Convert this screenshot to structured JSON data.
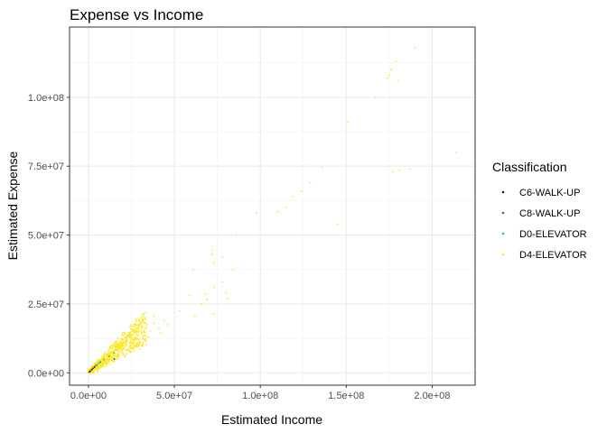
{
  "chart_data": {
    "type": "scatter",
    "title": "Expense vs Income",
    "xlabel": "Estimated Income",
    "ylabel": "Estimated Expense",
    "xlim": [
      -11000000.0,
      225000000.0
    ],
    "ylim": [
      -4500000.0,
      125500000.0
    ],
    "x_ticks": [
      0,
      50000000.0,
      100000000.0,
      150000000.0,
      200000000.0
    ],
    "x_tick_labels": [
      "0.0e+00",
      "5.0e+07",
      "1.0e+08",
      "1.5e+08",
      "2.0e+08"
    ],
    "y_ticks": [
      0,
      25000000.0,
      50000000.0,
      75000000.0,
      100000000.0
    ],
    "y_tick_labels": [
      "0.0e+00",
      "2.5e+07",
      "5.0e+07",
      "7.5e+07",
      "1.0e+08"
    ],
    "grid": true,
    "legend": {
      "title": "Classification",
      "position": "right"
    },
    "series": [
      {
        "name": "D4-ELEVATOR",
        "color": "#FDE725",
        "points": [
          [
            214000000,
            80000000
          ],
          [
            190000000,
            118000000
          ],
          [
            179000000,
            113000000
          ],
          [
            176000000,
            110000000
          ],
          [
            175000000,
            108000000
          ],
          [
            174000000,
            107000000
          ],
          [
            180000000,
            106000000
          ],
          [
            167000000,
            100000000
          ],
          [
            151000000,
            91000000
          ],
          [
            187000000,
            74000000
          ],
          [
            181000000,
            73500000
          ],
          [
            177000000,
            73000000
          ],
          [
            136000000,
            74500000
          ],
          [
            129000000,
            69000000
          ],
          [
            124000000,
            66000000
          ],
          [
            119000000,
            64000000
          ],
          [
            115000000,
            60000000
          ],
          [
            110000000,
            58500000
          ],
          [
            98000000,
            58000000
          ],
          [
            145000000,
            54000000
          ],
          [
            86000000,
            50000000
          ],
          [
            72000000,
            44500000
          ],
          [
            72000000,
            43000000
          ],
          [
            78000000,
            42000000
          ],
          [
            73000000,
            40000000
          ],
          [
            61000000,
            37500000
          ],
          [
            84000000,
            37500000
          ],
          [
            78000000,
            33000000
          ],
          [
            73000000,
            31000000
          ],
          [
            59000000,
            28000000
          ],
          [
            68000000,
            28500000
          ],
          [
            69000000,
            26500000
          ],
          [
            66000000,
            25000000
          ],
          [
            80000000,
            29000000
          ],
          [
            81000000,
            27000000
          ],
          [
            53000000,
            22500000
          ],
          [
            62000000,
            20500000
          ],
          [
            73000000,
            21500000
          ],
          [
            44000000,
            19000000
          ],
          [
            46000000,
            17500000
          ],
          [
            41000000,
            16000000
          ],
          [
            38000000,
            20500000
          ],
          [
            38000000,
            18000000
          ],
          [
            36000000,
            15000000
          ],
          [
            34000000,
            17500000
          ],
          [
            31000000,
            14000000
          ],
          [
            29000000,
            16000000
          ],
          [
            28000000,
            12500000
          ],
          [
            25000000,
            13500000
          ],
          [
            24000000,
            11000000
          ],
          [
            22000000,
            12000000
          ],
          [
            20000000,
            10000000
          ],
          [
            18000000,
            11500000
          ],
          [
            16000000,
            9000000
          ],
          [
            15000000,
            8000000
          ],
          [
            13000000,
            7000000
          ],
          [
            11000000,
            6500000
          ],
          [
            9000000,
            5500000
          ],
          [
            7000000,
            4500000
          ],
          [
            5000000,
            3200000
          ],
          [
            3000000,
            2000000
          ],
          [
            1500000,
            1000000
          ],
          [
            27000000,
            9500000
          ],
          [
            30000000,
            11000000
          ],
          [
            33000000,
            12000000
          ],
          [
            21000000,
            14000000
          ],
          [
            19000000,
            7500000
          ],
          [
            23000000,
            8500000
          ],
          [
            26000000,
            15500000
          ],
          [
            35000000,
            13000000
          ],
          [
            42000000,
            14500000
          ],
          [
            17000000,
            12500000
          ],
          [
            12000000,
            8500000
          ],
          [
            10000000,
            4000000
          ],
          [
            14000000,
            5500000
          ]
        ]
      },
      {
        "name": "D0-ELEVATOR",
        "color": "#35B779",
        "points": [
          [
            4000000,
            2600000
          ],
          [
            6000000,
            3500000
          ],
          [
            9000000,
            4800000
          ],
          [
            12000000,
            6000000
          ],
          [
            15000000,
            7200000
          ]
        ]
      },
      {
        "name": "C8-WALK-UP",
        "color": "#31688E",
        "points": [
          [
            2000000,
            1200000
          ],
          [
            3500000,
            2000000
          ],
          [
            5000000,
            2800000
          ],
          [
            7000000,
            3900000
          ]
        ]
      },
      {
        "name": "C6-WALK-UP",
        "color": "#440154",
        "points": [
          [
            500000,
            300000
          ],
          [
            1000000,
            600000
          ],
          [
            1800000,
            1100000
          ],
          [
            2600000,
            1600000
          ],
          [
            3500000,
            2100000
          ],
          [
            15000000,
            5000000
          ]
        ]
      }
    ]
  }
}
